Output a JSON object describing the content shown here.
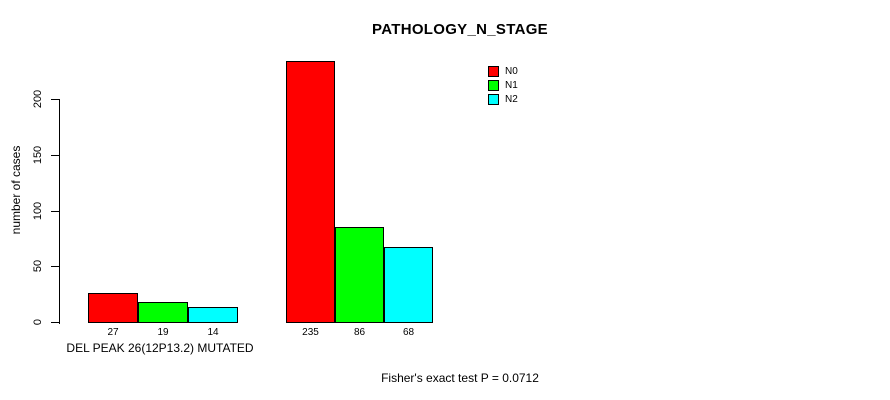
{
  "title": "PATHOLOGY_N_STAGE",
  "chart_data": {
    "type": "bar",
    "title": "PATHOLOGY_N_STAGE",
    "ylabel": "number of cases",
    "xlabel": "",
    "yticks": [
      0,
      50,
      100,
      150,
      200
    ],
    "ylim": [
      0,
      237
    ],
    "grid": false,
    "legend_position": "top-right",
    "series": [
      {
        "name": "N0",
        "color": "#ff0000"
      },
      {
        "name": "N1",
        "color": "#00ff00"
      },
      {
        "name": "N2",
        "color": "#00ffff"
      }
    ],
    "groups": [
      {
        "label": "DEL PEAK 26(12P13.2) MUTATED",
        "values": [
          27,
          19,
          14
        ]
      },
      {
        "label": "",
        "values": [
          235,
          86,
          68
        ]
      }
    ],
    "annotation": "Fisher's exact test P = 0.0712"
  }
}
